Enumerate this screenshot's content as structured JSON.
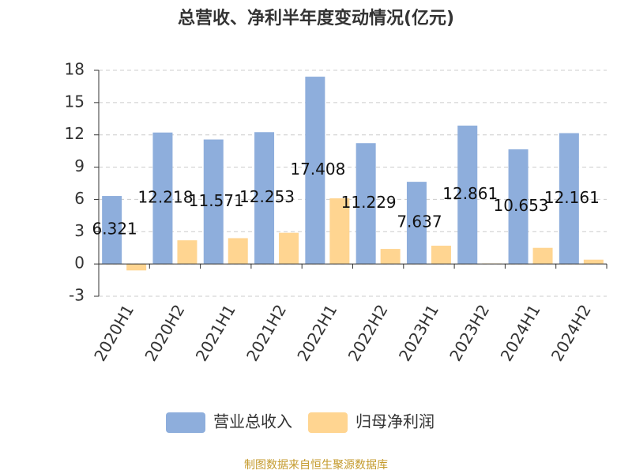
{
  "chart_data": {
    "type": "bar",
    "title": "总营收、净利半年度变动情况(亿元)",
    "categories": [
      "2020H1",
      "2020H2",
      "2021H1",
      "2021H2",
      "2022H1",
      "2022H2",
      "2023H1",
      "2023H2",
      "2024H1",
      "2024H2"
    ],
    "series": [
      {
        "name": "营业总收入",
        "color": "#8eaedc",
        "values": [
          6.321,
          12.218,
          11.571,
          12.253,
          17.408,
          11.229,
          7.637,
          12.861,
          10.653,
          12.161
        ]
      },
      {
        "name": "归母净利润",
        "color": "#ffd591",
        "values": [
          -0.6,
          2.2,
          2.4,
          2.9,
          6.1,
          1.4,
          1.7,
          0.05,
          1.5,
          0.4
        ]
      }
    ],
    "ylim": [
      -3,
      18
    ],
    "yticks": [
      -3,
      0,
      3,
      6,
      9,
      12,
      15,
      18
    ],
    "grid": true,
    "source": "制图数据来自恒生聚源数据库"
  }
}
